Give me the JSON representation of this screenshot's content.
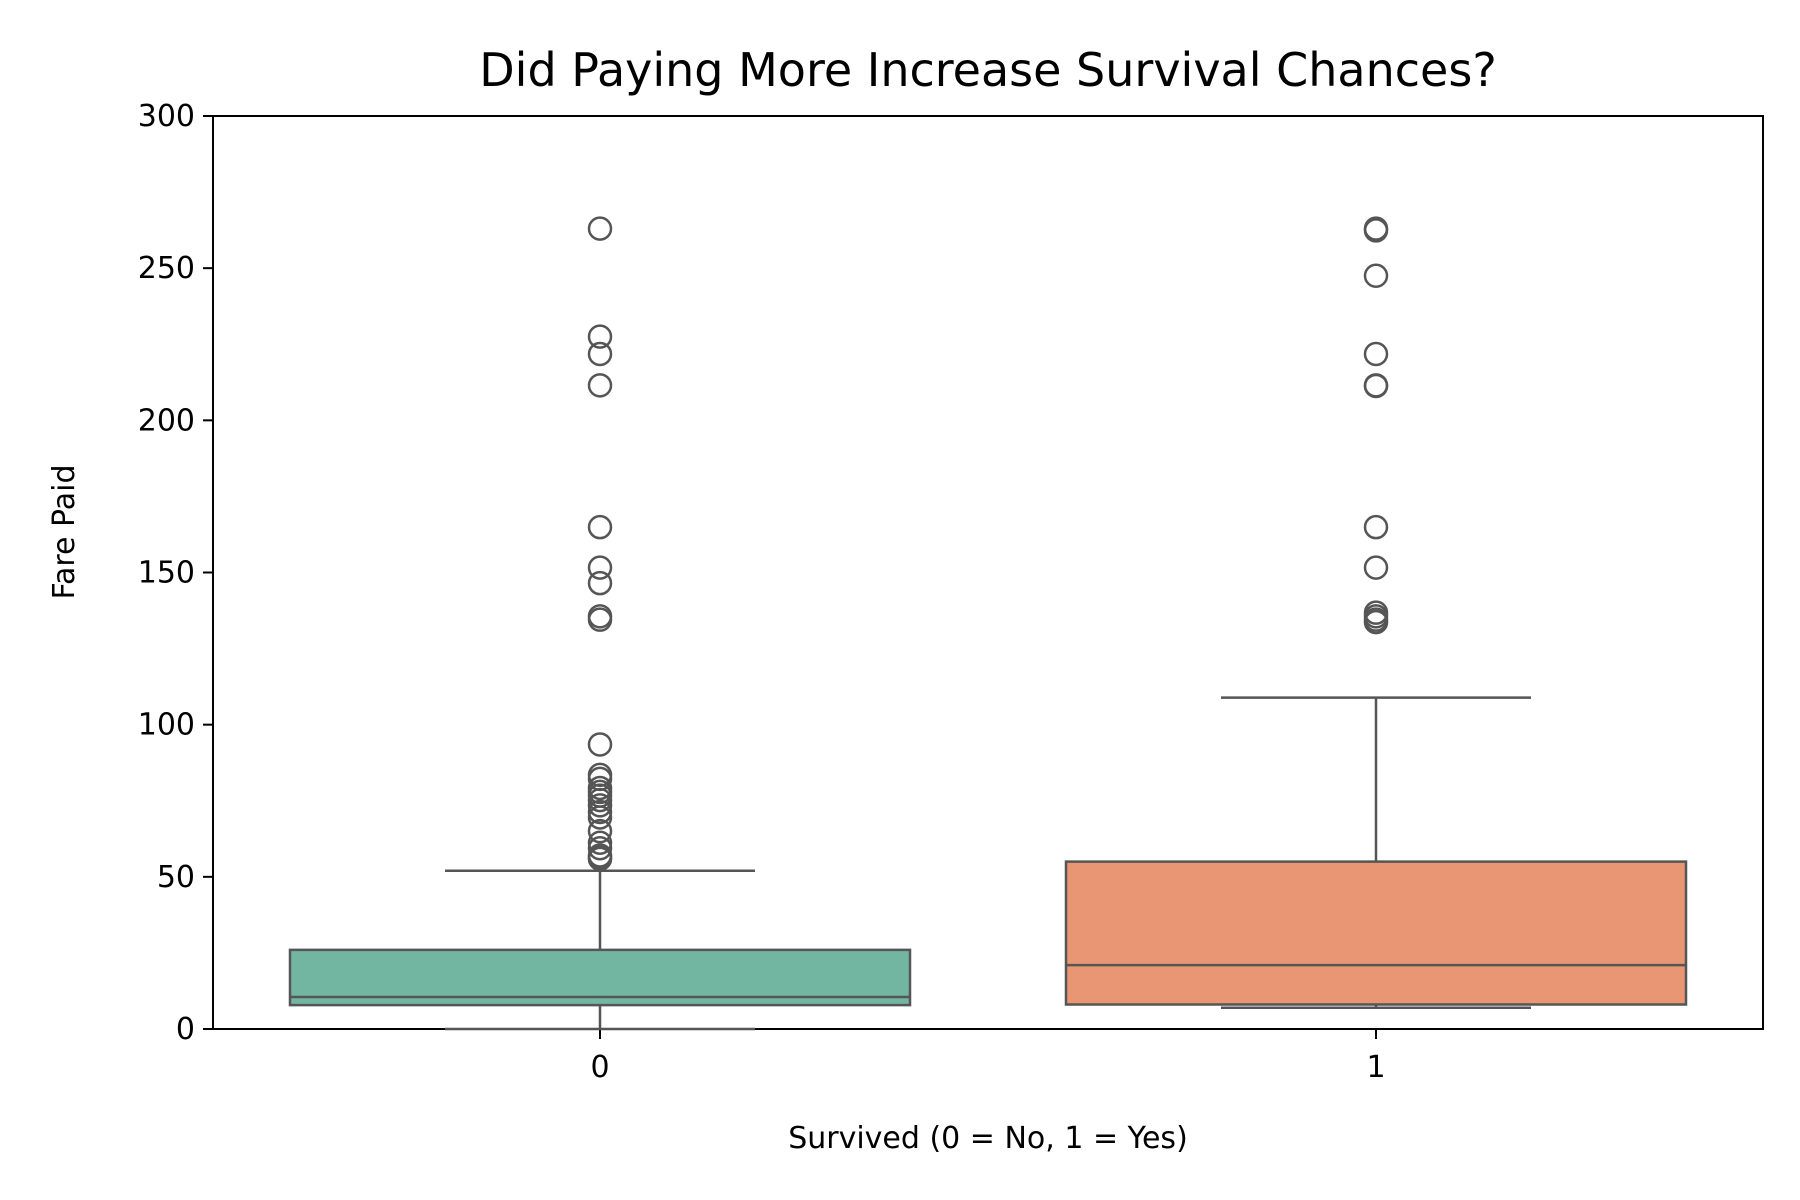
{
  "chart_data": {
    "type": "box",
    "title": "Did Paying More Increase Survival Chances?",
    "xlabel": "Survived (0 = No, 1 = Yes)",
    "ylabel": "Fare Paid",
    "ylim": [
      0,
      300
    ],
    "yticks": [
      0,
      50,
      100,
      150,
      200,
      250,
      300
    ],
    "categories": [
      "0",
      "1"
    ],
    "grid": false,
    "legend": "none",
    "boxes": [
      {
        "category": "0",
        "color": "#72b6a1",
        "whisker_low": 0,
        "q1": 7.85,
        "median": 10.5,
        "q3": 26.0,
        "whisker_high": 52.0,
        "outliers": [
          263.0,
          227.5,
          221.8,
          211.5,
          164.9,
          151.6,
          146.5,
          135.6,
          134.5,
          93.5,
          83.5,
          82.2,
          79.2,
          77.9,
          76.7,
          75.2,
          73.5,
          71.3,
          69.5,
          65.0,
          61.2,
          59.4,
          57.0,
          56.5,
          55.9
        ]
      },
      {
        "category": "1",
        "color": "#e99675",
        "whisker_low": 6.98,
        "q1": 8.05,
        "median": 21.0,
        "q3": 55.0,
        "whisker_high": 108.9,
        "outliers": [
          263.0,
          262.4,
          247.5,
          221.8,
          211.5,
          211.3,
          164.9,
          151.6,
          136.8,
          135.6,
          134.5,
          133.7
        ]
      }
    ]
  }
}
